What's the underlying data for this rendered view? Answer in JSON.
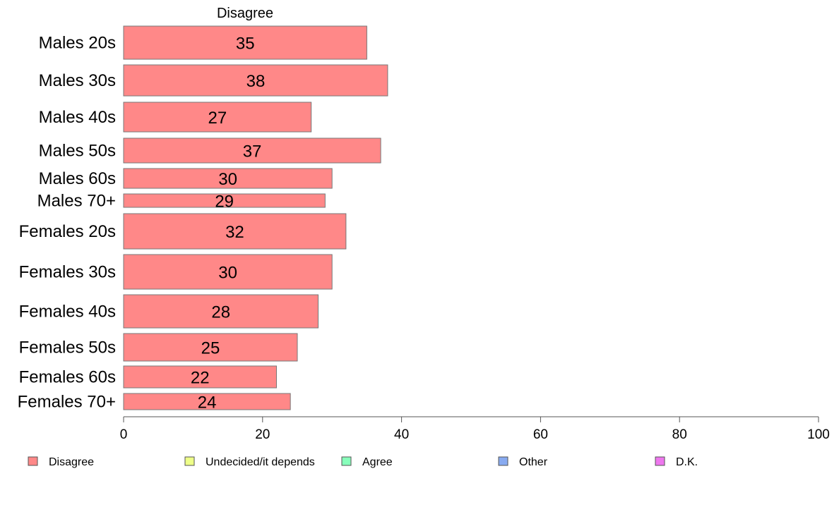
{
  "chart_data": {
    "type": "bar",
    "orientation": "horizontal",
    "title": "Disagree",
    "categories": [
      "Males 20s",
      "Males 30s",
      "Males 40s",
      "Males 50s",
      "Males 60s",
      "Males 70+",
      "Females 20s",
      "Females 30s",
      "Females 40s",
      "Females 50s",
      "Females 60s",
      "Females 70+"
    ],
    "series": [
      {
        "name": "Disagree",
        "values": [
          35,
          38,
          27,
          37,
          30,
          29,
          32,
          30,
          28,
          25,
          22,
          24
        ],
        "color": "#ff8888"
      }
    ],
    "data_labels": [
      "35",
      "38",
      "27",
      "37",
      "30",
      "29",
      "32",
      "30",
      "28",
      "25",
      "22",
      "24"
    ],
    "xlim": [
      0,
      100
    ],
    "x_ticks": [
      0,
      20,
      40,
      60,
      80,
      100
    ],
    "x_tick_labels": [
      "0",
      "20",
      "40",
      "60",
      "80",
      "100"
    ],
    "grid": false,
    "legend_position": "bottom",
    "legend": [
      {
        "label": "Disagree",
        "color": "#ff8888"
      },
      {
        "label": "Undecided/it depends",
        "color": "#eeff88"
      },
      {
        "label": "Agree",
        "color": "#88ffbb"
      },
      {
        "label": "Other",
        "color": "#88aaf0"
      },
      {
        "label": "D.K.",
        "color": "#ee77ee"
      }
    ],
    "bar_border_color": "#777777"
  }
}
